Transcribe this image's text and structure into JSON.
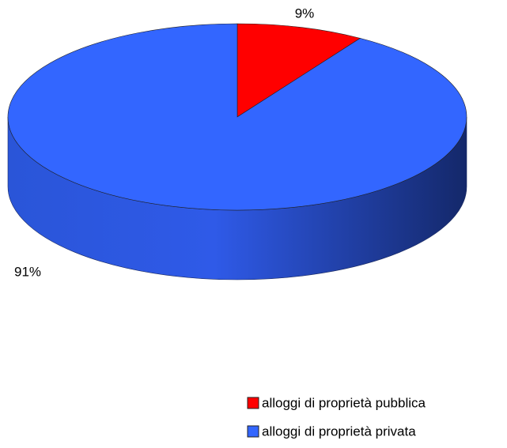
{
  "chart_data": {
    "type": "pie",
    "categories": [
      "alloggi di proprietà pubblica",
      "alloggi di proprietà privata"
    ],
    "values": [
      9,
      91
    ],
    "value_labels": [
      "9%",
      "91%"
    ],
    "colors": [
      "#ff0000",
      "#3366ff"
    ],
    "legend": "bottom-right"
  }
}
